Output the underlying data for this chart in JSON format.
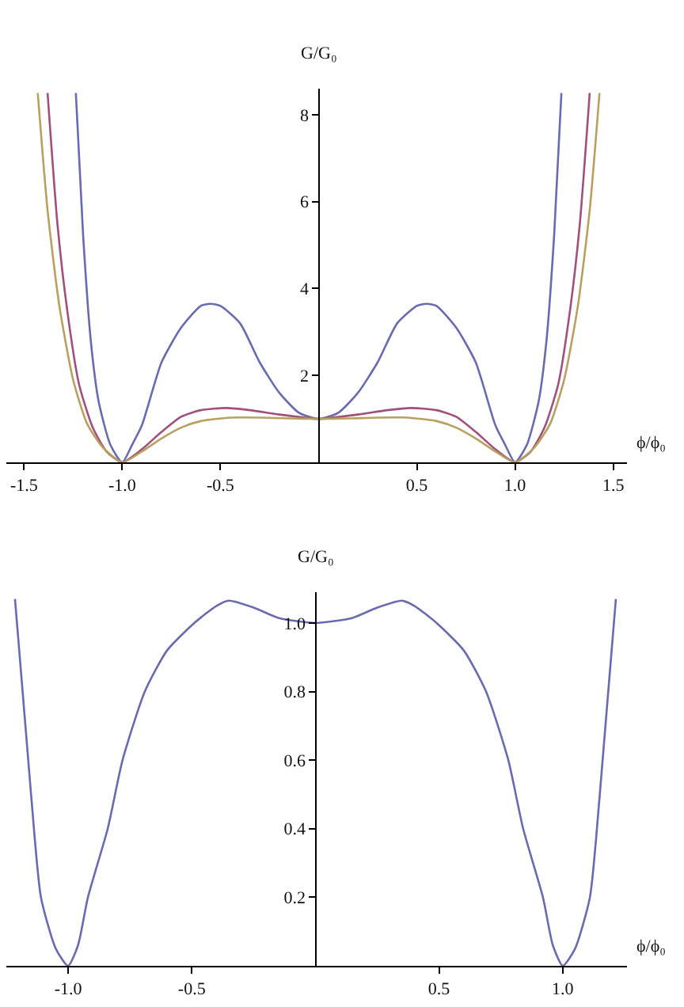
{
  "chart_data": [
    {
      "type": "line",
      "xlabel": "ϕ/ϕ₀",
      "ylabel": "G/G₀",
      "xlim": [
        -1.59,
        1.57
      ],
      "ylim": [
        0,
        8.6
      ],
      "xticks": [
        {
          "value": -1.5,
          "label": "-1.5"
        },
        {
          "value": -1,
          "label": "-1.0"
        },
        {
          "value": -0.5,
          "label": "-0.5"
        },
        {
          "value": 0.5,
          "label": "0.5"
        },
        {
          "value": 1,
          "label": "1.0"
        },
        {
          "value": 1.5,
          "label": "1.5"
        }
      ],
      "yticks": [
        2,
        4,
        6,
        8
      ],
      "marker": "none",
      "line_style": "solid",
      "series": [
        {
          "color": "#6a6ab0",
          "x": [
            -1.236,
            -1.2,
            -1.16,
            -1.12,
            -1.06,
            -1.0,
            -0.95,
            -0.9,
            -0.8,
            -0.7,
            -0.6,
            -0.55,
            -0.5,
            -0.4,
            -0.3,
            -0.2,
            -0.1,
            0,
            0.1,
            0.2,
            0.3,
            0.4,
            0.5,
            0.55,
            0.6,
            0.7,
            0.8,
            0.9,
            0.95,
            1.0,
            1.06,
            1.12,
            1.16,
            1.2,
            1.236
          ],
          "values": [
            8.5,
            5.3,
            2.8,
            1.4,
            0.4,
            0,
            0.4,
            0.85,
            2.3,
            3.1,
            3.6,
            3.65,
            3.6,
            3.2,
            2.3,
            1.6,
            1.14,
            1.0,
            1.14,
            1.6,
            2.3,
            3.2,
            3.6,
            3.65,
            3.6,
            3.1,
            2.3,
            0.85,
            0.4,
            0,
            0.4,
            1.4,
            2.8,
            5.3,
            8.5
          ]
        },
        {
          "color": "#a0507a",
          "x": [
            -1.38,
            -1.33,
            -1.28,
            -1.22,
            -1.15,
            -1.08,
            -1.0,
            -0.9,
            -0.8,
            -0.7,
            -0.6,
            -0.47,
            -0.35,
            -0.2,
            0,
            0.2,
            0.35,
            0.47,
            0.6,
            0.7,
            0.8,
            0.9,
            1.0,
            1.08,
            1.15,
            1.22,
            1.28,
            1.33,
            1.38
          ],
          "values": [
            8.5,
            5.5,
            3.5,
            1.8,
            0.8,
            0.25,
            0,
            0.3,
            0.7,
            1.05,
            1.2,
            1.25,
            1.2,
            1.1,
            1.0,
            1.1,
            1.2,
            1.25,
            1.2,
            1.05,
            0.7,
            0.3,
            0,
            0.25,
            0.8,
            1.8,
            3.5,
            5.5,
            8.5
          ]
        },
        {
          "color": "#b8a060",
          "x": [
            -1.43,
            -1.38,
            -1.32,
            -1.25,
            -1.18,
            -1.1,
            -1.0,
            -0.9,
            -0.8,
            -0.7,
            -0.6,
            -0.45,
            -0.3,
            -0.15,
            0,
            0.15,
            0.3,
            0.45,
            0.6,
            0.7,
            0.8,
            0.9,
            1.0,
            1.1,
            1.18,
            1.25,
            1.32,
            1.38,
            1.43
          ],
          "values": [
            8.5,
            5.8,
            3.6,
            1.9,
            0.9,
            0.35,
            0,
            0.25,
            0.55,
            0.8,
            0.95,
            1.03,
            1.03,
            1.01,
            1.0,
            1.01,
            1.03,
            1.03,
            0.95,
            0.8,
            0.55,
            0.25,
            0,
            0.35,
            0.9,
            1.9,
            3.6,
            5.8,
            8.5
          ]
        }
      ]
    },
    {
      "type": "line",
      "xlabel": "ϕ/ϕ₀",
      "ylabel": "G/G₀",
      "xlim": [
        -1.25,
        1.26
      ],
      "ylim": [
        0,
        1.09
      ],
      "xticks": [
        {
          "value": -1,
          "label": "-1.0"
        },
        {
          "value": -0.5,
          "label": "-0.5"
        },
        {
          "value": 0.5,
          "label": "0.5"
        },
        {
          "value": 1,
          "label": "1.0"
        }
      ],
      "yticks": [
        0.2,
        0.4,
        0.6,
        0.8,
        {
          "value": 1,
          "label": "1.0"
        }
      ],
      "marker": "none",
      "line_style": "solid",
      "series": [
        {
          "color": "#6a6ab0",
          "x": [
            -1.215,
            -1.15,
            -1.11,
            -1.05,
            -1.0,
            -0.96,
            -0.92,
            -0.84,
            -0.78,
            -0.69,
            -0.6,
            -0.49,
            -0.4,
            -0.35,
            -0.25,
            -0.15,
            0,
            0.15,
            0.25,
            0.35,
            0.4,
            0.49,
            0.6,
            0.69,
            0.78,
            0.84,
            0.92,
            0.96,
            1.0,
            1.05,
            1.11,
            1.15,
            1.215
          ],
          "values": [
            1.07,
            0.5,
            0.2,
            0.05,
            0,
            0.06,
            0.2,
            0.4,
            0.6,
            0.8,
            0.92,
            1.0,
            1.05,
            1.065,
            1.045,
            1.015,
            1.0,
            1.015,
            1.045,
            1.065,
            1.05,
            1.0,
            0.92,
            0.8,
            0.6,
            0.4,
            0.2,
            0.06,
            0,
            0.05,
            0.2,
            0.5,
            1.07
          ]
        }
      ]
    }
  ]
}
